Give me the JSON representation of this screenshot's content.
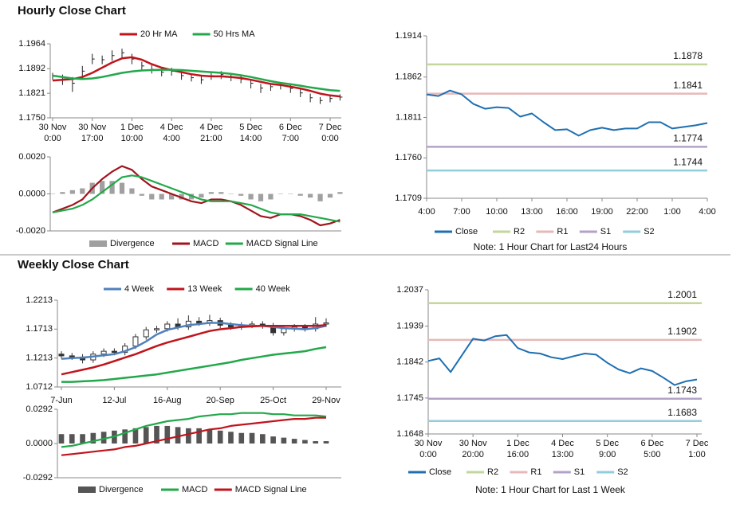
{
  "headings": [
    "Hourly Close Chart",
    "Weekly Close Chart"
  ],
  "chart_data": [
    {
      "type": "candlestick",
      "categories": [
        [
          "30 Nov",
          "0:00"
        ],
        null,
        null,
        null,
        [
          "30 Nov",
          "17:00"
        ],
        null,
        null,
        null,
        [
          "1 Dec",
          "10:00"
        ],
        null,
        null,
        null,
        [
          "4 Dec",
          "4:00"
        ],
        null,
        null,
        null,
        [
          "4 Dec",
          "21:00"
        ],
        null,
        null,
        null,
        [
          "5 Dec",
          "14:00"
        ],
        null,
        null,
        null,
        [
          "6 Dec",
          "7:00"
        ],
        null,
        null,
        null,
        [
          "7 Dec",
          "0:00"
        ],
        null
      ],
      "high": [
        1.188,
        1.1875,
        1.1868,
        1.19,
        1.1935,
        1.193,
        1.1945,
        1.195,
        1.1935,
        1.1912,
        1.1902,
        1.1895,
        1.1895,
        1.1885,
        1.1878,
        1.1872,
        1.1882,
        1.1885,
        1.188,
        1.1872,
        1.1862,
        1.1848,
        1.185,
        1.1852,
        1.1845,
        1.1832,
        1.182,
        1.181,
        1.1815,
        1.1818
      ],
      "low": [
        1.186,
        1.1845,
        1.1825,
        1.1865,
        1.1905,
        1.1905,
        1.1915,
        1.192,
        1.1905,
        1.1888,
        1.1878,
        1.187,
        1.1872,
        1.186,
        1.1855,
        1.1848,
        1.186,
        1.1862,
        1.1856,
        1.185,
        1.1835,
        1.1822,
        1.1828,
        1.1832,
        1.1822,
        1.181,
        1.1795,
        1.179,
        1.1795,
        1.18
      ],
      "close": [
        1.187,
        1.1862,
        1.185,
        1.1885,
        1.192,
        1.1918,
        1.193,
        1.1938,
        1.192,
        1.19,
        1.189,
        1.1882,
        1.1885,
        1.1872,
        1.1866,
        1.186,
        1.1872,
        1.1875,
        1.1868,
        1.1862,
        1.185,
        1.1836,
        1.184,
        1.1843,
        1.1835,
        1.1822,
        1.1808,
        1.18,
        1.1806,
        1.181
      ],
      "candle_color": "#222222",
      "series": [
        {
          "name": "20 Hr MA",
          "color": "#c0141c",
          "values": [
            1.1858,
            1.186,
            1.1862,
            1.1868,
            1.188,
            1.1895,
            1.191,
            1.1922,
            1.1925,
            1.1918,
            1.1905,
            1.1895,
            1.1888,
            1.1882,
            1.1876,
            1.1872,
            1.187,
            1.187,
            1.1868,
            1.1865,
            1.186,
            1.1854,
            1.1848,
            1.1845,
            1.184,
            1.1835,
            1.1828,
            1.182,
            1.1815,
            1.1812
          ]
        },
        {
          "name": "50 Hrs MA",
          "color": "#22a84a",
          "values": [
            1.1872,
            1.1868,
            1.1864,
            1.1862,
            1.1864,
            1.1868,
            1.1874,
            1.188,
            1.1884,
            1.1887,
            1.1888,
            1.1889,
            1.1889,
            1.1888,
            1.1886,
            1.1884,
            1.1882,
            1.188,
            1.1877,
            1.1873,
            1.1868,
            1.1862,
            1.1856,
            1.1851,
            1.1847,
            1.1843,
            1.1838,
            1.1834,
            1.183,
            1.1828
          ]
        }
      ],
      "ylim": [
        1.175,
        1.1964
      ],
      "yticks": [
        1.1964,
        1.1892,
        1.1821,
        {
          "value": 1.175,
          "label": "1.1750"
        }
      ]
    },
    {
      "type": "macd",
      "series": [
        {
          "name": "Divergence",
          "kind": "bar",
          "color": "#a0a0a0",
          "values": [
            0,
            0.0001,
            0.0002,
            0.0003,
            0.0006,
            0.0007,
            0.0007,
            0.0006,
            0.0003,
            -0.0001,
            -0.0003,
            -0.0003,
            -0.0003,
            -0.0003,
            -0.0003,
            -0.0002,
            0.0001,
            0.0001,
            0,
            -0.0001,
            -0.0003,
            -0.0004,
            -0.0003,
            0,
            0,
            -0.0001,
            -0.0002,
            -0.0004,
            -0.0002,
            0.0001
          ]
        },
        {
          "name": "MACD",
          "kind": "line",
          "color": "#a0141c",
          "values": [
            -0.001,
            -0.0008,
            -0.0006,
            -0.0003,
            0.0003,
            0.0008,
            0.0012,
            0.0015,
            0.0013,
            0.0008,
            0.0004,
            0.0002,
            0,
            -0.0002,
            -0.0004,
            -0.0005,
            -0.0003,
            -0.0003,
            -0.0004,
            -0.0006,
            -0.0009,
            -0.0012,
            -0.0013,
            -0.0011,
            -0.0011,
            -0.0012,
            -0.0014,
            -0.0017,
            -0.0016,
            -0.0014
          ]
        },
        {
          "name": "MACD Signal Line",
          "kind": "line",
          "color": "#22a84a",
          "values": [
            -0.001,
            -0.0009,
            -0.0008,
            -0.0006,
            -0.0003,
            0.0001,
            0.0005,
            0.0009,
            0.001,
            0.0009,
            0.0007,
            0.0005,
            0.0003,
            0.0001,
            -0.0001,
            -0.0003,
            -0.0004,
            -0.0004,
            -0.0004,
            -0.0005,
            -0.0006,
            -0.0008,
            -0.001,
            -0.0011,
            -0.0011,
            -0.0011,
            -0.0012,
            -0.0013,
            -0.0014,
            -0.0015
          ]
        }
      ],
      "ylim": [
        -0.002,
        0.002
      ],
      "yticks": [
        {
          "value": 0.002,
          "label": "0.0020"
        },
        {
          "value": 0,
          "label": "0.0000"
        },
        {
          "value": -0.002,
          "label": "-0.0020"
        }
      ]
    },
    {
      "type": "line",
      "categories": [
        "4:00",
        null,
        null,
        "7:00",
        null,
        null,
        "10:00",
        null,
        null,
        "13:00",
        null,
        null,
        "16:00",
        null,
        null,
        "19:00",
        null,
        null,
        "22:00",
        null,
        null,
        "1:00",
        null,
        null,
        "4:00"
      ],
      "series": [
        {
          "name": "Close",
          "color": "#1f6fb0",
          "values": [
            1.184,
            1.1838,
            1.1845,
            1.184,
            1.1828,
            1.1822,
            1.1824,
            1.1823,
            1.1812,
            1.1816,
            1.1805,
            1.1795,
            1.1796,
            1.1788,
            1.1795,
            1.1798,
            1.1795,
            1.1797,
            1.1797,
            1.1805,
            1.1805,
            1.1797,
            1.1799,
            1.1801,
            1.1804
          ]
        }
      ],
      "levels": [
        {
          "name": "R2",
          "value": 1.1878,
          "color": "#c3d69b"
        },
        {
          "name": "R1",
          "value": 1.1841,
          "color": "#e6b9b8"
        },
        {
          "name": "S1",
          "value": 1.1774,
          "color": "#b3a2c7"
        },
        {
          "name": "S2",
          "value": 1.1744,
          "color": "#92cddc"
        }
      ],
      "ylim": [
        1.1709,
        1.1914
      ],
      "yticks": [
        1.1914,
        1.1862,
        1.1811,
        {
          "value": 1.176,
          "label": "1.1760"
        },
        1.1709
      ],
      "note": "Note: 1 Hour Chart for Last24 Hours"
    },
    {
      "type": "candlestick",
      "categories": [
        "7-Jun",
        null,
        null,
        null,
        null,
        "12-Jul",
        null,
        null,
        null,
        null,
        "16-Aug",
        null,
        null,
        null,
        null,
        "20-Sep",
        null,
        null,
        null,
        null,
        "25-Oct",
        null,
        null,
        null,
        null,
        "29-Nov"
      ],
      "open": [
        1.128,
        1.125,
        1.123,
        1.118,
        1.128,
        1.133,
        1.131,
        1.142,
        1.158,
        1.17,
        1.172,
        1.18,
        1.175,
        1.185,
        1.182,
        1.186,
        1.178,
        1.175,
        1.178,
        1.18,
        1.177,
        1.165,
        1.172,
        1.175,
        1.172,
        1.18
      ],
      "high": [
        1.133,
        1.13,
        1.128,
        1.133,
        1.138,
        1.138,
        1.147,
        1.163,
        1.175,
        1.177,
        1.185,
        1.19,
        1.195,
        1.192,
        1.196,
        1.191,
        1.183,
        1.183,
        1.185,
        1.185,
        1.182,
        1.177,
        1.18,
        1.18,
        1.192,
        1.19
      ],
      "low": [
        1.12,
        1.118,
        1.112,
        1.113,
        1.123,
        1.126,
        1.126,
        1.137,
        1.153,
        1.165,
        1.167,
        1.17,
        1.17,
        1.177,
        1.177,
        1.173,
        1.17,
        1.17,
        1.173,
        1.172,
        1.16,
        1.16,
        1.167,
        1.167,
        1.167,
        1.175
      ],
      "close": [
        1.125,
        1.123,
        1.118,
        1.128,
        1.133,
        1.131,
        1.142,
        1.158,
        1.17,
        1.172,
        1.18,
        1.175,
        1.185,
        1.182,
        1.186,
        1.178,
        1.175,
        1.178,
        1.18,
        1.177,
        1.165,
        1.172,
        1.175,
        1.172,
        1.18,
        1.182
      ],
      "candle_color": "#333333",
      "series": [
        {
          "name": "4 Week",
          "color": "#4f81bd",
          "values": [
            1.12,
            1.121,
            1.122,
            1.124,
            1.126,
            1.128,
            1.133,
            1.14,
            1.15,
            1.162,
            1.17,
            1.174,
            1.178,
            1.18,
            1.182,
            1.182,
            1.18,
            1.178,
            1.177,
            1.177,
            1.175,
            1.173,
            1.172,
            1.171,
            1.173,
            1.177
          ]
        },
        {
          "name": "13 Week",
          "color": "#c0141c",
          "values": [
            1.093,
            1.097,
            1.101,
            1.105,
            1.11,
            1.116,
            1.122,
            1.128,
            1.135,
            1.142,
            1.148,
            1.153,
            1.158,
            1.163,
            1.168,
            1.171,
            1.173,
            1.175,
            1.176,
            1.177,
            1.177,
            1.177,
            1.177,
            1.177,
            1.177,
            1.178
          ]
        },
        {
          "name": "40 Week",
          "color": "#22a84a",
          "values": [
            1.08,
            1.08,
            1.081,
            1.082,
            1.083,
            1.085,
            1.087,
            1.089,
            1.091,
            1.093,
            1.096,
            1.099,
            1.102,
            1.105,
            1.108,
            1.111,
            1.114,
            1.118,
            1.121,
            1.124,
            1.127,
            1.129,
            1.131,
            1.133,
            1.137,
            1.14
          ]
        }
      ],
      "ylim": [
        1.0712,
        1.2213
      ],
      "yticks": [
        1.2213,
        1.1713,
        1.1213,
        1.0712
      ]
    },
    {
      "type": "macd",
      "series": [
        {
          "name": "Divergence",
          "kind": "bar",
          "color": "#555555",
          "values": [
            0.008,
            0.008,
            0.008,
            0.009,
            0.01,
            0.011,
            0.012,
            0.013,
            0.014,
            0.015,
            0.015,
            0.014,
            0.013,
            0.013,
            0.012,
            0.011,
            0.01,
            0.009,
            0.009,
            0.008,
            0.006,
            0.005,
            0.004,
            0.003,
            0.002,
            0.002
          ]
        },
        {
          "name": "MACD",
          "kind": "line",
          "color": "#22a84a",
          "values": [
            -0.003,
            -0.002,
            0,
            0.002,
            0.004,
            0.006,
            0.009,
            0.012,
            0.015,
            0.017,
            0.019,
            0.02,
            0.021,
            0.023,
            0.024,
            0.025,
            0.025,
            0.026,
            0.026,
            0.026,
            0.025,
            0.025,
            0.024,
            0.024,
            0.024,
            0.023
          ]
        },
        {
          "name": "MACD Signal Line",
          "kind": "line",
          "color": "#c0141c",
          "values": [
            -0.01,
            -0.009,
            -0.008,
            -0.007,
            -0.006,
            -0.005,
            -0.003,
            -0.002,
            0,
            0.002,
            0.004,
            0.006,
            0.008,
            0.01,
            0.012,
            0.013,
            0.015,
            0.016,
            0.017,
            0.018,
            0.019,
            0.02,
            0.021,
            0.021,
            0.022,
            0.022
          ]
        }
      ],
      "ylim": [
        -0.0292,
        0.0292
      ],
      "yticks": [
        0.0292,
        {
          "value": 0,
          "label": "0.0000"
        },
        -0.0292
      ]
    },
    {
      "type": "line",
      "categories": [
        [
          "30 Nov",
          "0:00"
        ],
        null,
        null,
        null,
        [
          "30 Nov",
          "20:00"
        ],
        null,
        null,
        null,
        [
          "1 Dec",
          "16:00"
        ],
        null,
        null,
        null,
        [
          "4 Dec",
          "13:00"
        ],
        null,
        null,
        null,
        [
          "5 Dec",
          "9:00"
        ],
        null,
        null,
        null,
        [
          "6 Dec",
          "5:00"
        ],
        null,
        null,
        null,
        [
          "7 Dec",
          "1:00"
        ]
      ],
      "series": [
        {
          "name": "Close",
          "color": "#1f6fb0",
          "values": [
            1.1845,
            1.1852,
            1.1815,
            1.186,
            1.1905,
            1.19,
            1.1912,
            1.1915,
            1.188,
            1.1868,
            1.1865,
            1.1855,
            1.185,
            1.1858,
            1.1865,
            1.1862,
            1.184,
            1.1822,
            1.1812,
            1.1825,
            1.1818,
            1.18,
            1.178,
            1.179,
            1.1795
          ]
        }
      ],
      "levels": [
        {
          "name": "R2",
          "value": 1.2001,
          "color": "#c3d69b"
        },
        {
          "name": "R1",
          "value": 1.1902,
          "color": "#e6b9b8"
        },
        {
          "name": "S1",
          "value": 1.1743,
          "color": "#b3a2c7"
        },
        {
          "name": "S2",
          "value": 1.1683,
          "color": "#92cddc"
        }
      ],
      "ylim": [
        1.1648,
        1.2037
      ],
      "yticks": [
        1.2037,
        1.1939,
        1.1842,
        1.1745,
        1.1648
      ],
      "note": "Note: 1 Hour Chart for Last 1 Week"
    }
  ]
}
